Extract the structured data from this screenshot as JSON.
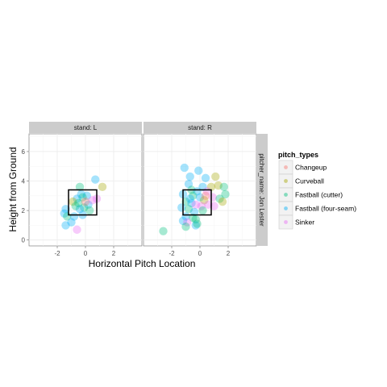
{
  "chart_data": {
    "type": "scatter",
    "xlabel": "Horizontal Pitch Location",
    "ylabel": "Height from Ground",
    "xlim": [
      -4,
      4
    ],
    "ylim": [
      -0.4,
      7.2
    ],
    "x_ticks": [
      -2,
      0,
      2
    ],
    "y_ticks": [
      0,
      2,
      4,
      6
    ],
    "grid": true,
    "legend_position": "right",
    "strike_zone": {
      "x": [
        -1.2,
        0.8
      ],
      "y": [
        1.7,
        3.4
      ]
    },
    "facet_labels": [
      "stand: L",
      "stand: R"
    ],
    "row_label": "pitcher_name: Jon Lester",
    "legend": {
      "title": "pitch_types",
      "items": [
        "Changeup",
        "Curveball",
        "Fastball (cutter)",
        "Fastball (four-seam)",
        "Sinker"
      ]
    },
    "colors": {
      "Changeup": "#F8766D",
      "Curveball": "#A3A500",
      "Fastball (cutter)": "#00BF7D",
      "Fastball (four-seam)": "#00B0F6",
      "Sinker": "#E76BF3"
    },
    "panels": [
      {
        "stand": "L",
        "points": [
          {
            "x": 0.7,
            "y": 4.1,
            "type": "Fastball (four-seam)"
          },
          {
            "x": 1.2,
            "y": 3.6,
            "type": "Curveball"
          },
          {
            "x": -0.4,
            "y": 3.6,
            "type": "Fastball (cutter)"
          },
          {
            "x": -0.3,
            "y": 3.1,
            "type": "Fastball (four-seam)"
          },
          {
            "x": 0.1,
            "y": 3.0,
            "type": "Fastball (four-seam)"
          },
          {
            "x": -0.2,
            "y": 2.9,
            "type": "Fastball (cutter)"
          },
          {
            "x": -0.6,
            "y": 2.8,
            "type": "Fastball (four-seam)"
          },
          {
            "x": -0.9,
            "y": 2.6,
            "type": "Curveball"
          },
          {
            "x": -0.5,
            "y": 2.5,
            "type": "Fastball (cutter)"
          },
          {
            "x": 0.2,
            "y": 2.4,
            "type": "Fastball (four-seam)"
          },
          {
            "x": 0.5,
            "y": 2.7,
            "type": "Sinker"
          },
          {
            "x": 0.8,
            "y": 2.8,
            "type": "Sinker"
          },
          {
            "x": -0.1,
            "y": 2.2,
            "type": "Fastball (cutter)"
          },
          {
            "x": -0.4,
            "y": 2.1,
            "type": "Fastball (four-seam)"
          },
          {
            "x": -1.4,
            "y": 2.1,
            "type": "Fastball (four-seam)"
          },
          {
            "x": -1.5,
            "y": 1.8,
            "type": "Fastball (four-seam)"
          },
          {
            "x": -1.3,
            "y": 1.6,
            "type": "Fastball (cutter)"
          },
          {
            "x": -0.8,
            "y": 1.6,
            "type": "Fastball (four-seam)"
          },
          {
            "x": -0.2,
            "y": 1.7,
            "type": "Fastball (four-seam)"
          },
          {
            "x": 0.3,
            "y": 2.0,
            "type": "Fastball (cutter)"
          },
          {
            "x": -1.4,
            "y": 1.0,
            "type": "Fastball (four-seam)"
          },
          {
            "x": -1.0,
            "y": 1.2,
            "type": "Fastball (four-seam)"
          },
          {
            "x": -0.6,
            "y": 0.7,
            "type": "Sinker"
          },
          {
            "x": 0.0,
            "y": 2.6,
            "type": "Changeup"
          },
          {
            "x": -0.7,
            "y": 2.3,
            "type": "Fastball (cutter)"
          }
        ]
      },
      {
        "stand": "R",
        "points": [
          {
            "x": -1.1,
            "y": 4.9,
            "type": "Fastball (four-seam)"
          },
          {
            "x": -0.1,
            "y": 4.7,
            "type": "Fastball (four-seam)"
          },
          {
            "x": -0.7,
            "y": 4.3,
            "type": "Fastball (four-seam)"
          },
          {
            "x": 0.4,
            "y": 4.2,
            "type": "Fastball (four-seam)"
          },
          {
            "x": 1.1,
            "y": 4.3,
            "type": "Curveball"
          },
          {
            "x": -0.8,
            "y": 3.8,
            "type": "Fastball (four-seam)"
          },
          {
            "x": 0.2,
            "y": 3.6,
            "type": "Fastball (four-seam)"
          },
          {
            "x": 0.8,
            "y": 3.6,
            "type": "Curveball"
          },
          {
            "x": 1.3,
            "y": 3.7,
            "type": "Curveball"
          },
          {
            "x": 1.7,
            "y": 3.6,
            "type": "Fastball (cutter)"
          },
          {
            "x": 1.8,
            "y": 3.1,
            "type": "Fastball (cutter)"
          },
          {
            "x": -0.6,
            "y": 3.4,
            "type": "Fastball (cutter)"
          },
          {
            "x": -0.2,
            "y": 3.3,
            "type": "Fastball (four-seam)"
          },
          {
            "x": 0.5,
            "y": 3.3,
            "type": "Sinker"
          },
          {
            "x": -1.2,
            "y": 3.1,
            "type": "Fastball (four-seam)"
          },
          {
            "x": -0.5,
            "y": 3.0,
            "type": "Fastball (cutter)"
          },
          {
            "x": 0.0,
            "y": 2.9,
            "type": "Fastball (four-seam)"
          },
          {
            "x": 0.3,
            "y": 2.7,
            "type": "Curveball"
          },
          {
            "x": 0.9,
            "y": 2.9,
            "type": "Sinker"
          },
          {
            "x": 1.4,
            "y": 2.8,
            "type": "Fastball (cutter)"
          },
          {
            "x": -1.0,
            "y": 2.6,
            "type": "Fastball (cutter)"
          },
          {
            "x": -0.6,
            "y": 2.5,
            "type": "Fastball (four-seam)"
          },
          {
            "x": -0.3,
            "y": 2.4,
            "type": "Sinker"
          },
          {
            "x": 0.1,
            "y": 2.3,
            "type": "Sinker"
          },
          {
            "x": 0.6,
            "y": 2.4,
            "type": "Sinker"
          },
          {
            "x": 1.0,
            "y": 2.3,
            "type": "Sinker"
          },
          {
            "x": -1.3,
            "y": 2.2,
            "type": "Fastball (four-seam)"
          },
          {
            "x": -0.8,
            "y": 2.1,
            "type": "Fastball (cutter)"
          },
          {
            "x": -0.4,
            "y": 1.9,
            "type": "Fastball (four-seam)"
          },
          {
            "x": 0.2,
            "y": 2.0,
            "type": "Fastball (cutter)"
          },
          {
            "x": -1.0,
            "y": 1.6,
            "type": "Fastball (four-seam)"
          },
          {
            "x": -0.5,
            "y": 1.5,
            "type": "Fastball (cutter)"
          },
          {
            "x": -1.2,
            "y": 1.3,
            "type": "Fastball (four-seam)"
          },
          {
            "x": -0.9,
            "y": 1.2,
            "type": "Sinker"
          },
          {
            "x": -0.3,
            "y": 1.4,
            "type": "Fastball (cutter)"
          },
          {
            "x": -1.0,
            "y": 0.9,
            "type": "Fastball (cutter)"
          },
          {
            "x": -0.3,
            "y": 1.0,
            "type": "Fastball (four-seam)"
          },
          {
            "x": -0.2,
            "y": 1.1,
            "type": "Fastball (cutter)"
          },
          {
            "x": -2.6,
            "y": 0.6,
            "type": "Fastball (cutter)"
          },
          {
            "x": 0.4,
            "y": 3.0,
            "type": "Changeup"
          },
          {
            "x": -0.7,
            "y": 2.8,
            "type": "Fastball (four-seam)"
          },
          {
            "x": 1.6,
            "y": 2.6,
            "type": "Curveball"
          }
        ]
      }
    ]
  }
}
